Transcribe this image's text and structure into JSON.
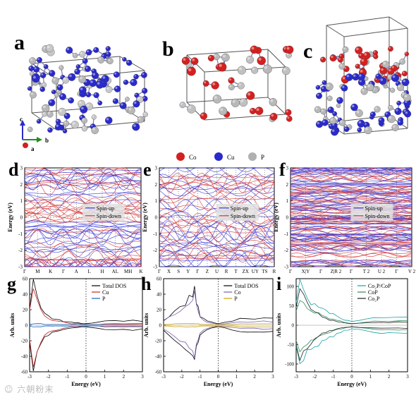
{
  "panel_labels": {
    "a": "a",
    "b": "b",
    "c": "c",
    "d": "d",
    "e": "e",
    "f": "f",
    "g": "g",
    "h": "h",
    "i": "i"
  },
  "atom_legend": [
    {
      "name": "Co",
      "color": "#d42020"
    },
    {
      "name": "Cu",
      "color": "#2a2acc"
    },
    {
      "name": "P",
      "color": "#b0b0b0"
    }
  ],
  "axes_triad": {
    "c": "c",
    "b": "b",
    "a": "a"
  },
  "band_panels": [
    {
      "id": "d",
      "ylabel": "Energy (eV)",
      "yticks": [
        "3",
        "2",
        "1",
        "0",
        "-1",
        "-2",
        "-3"
      ],
      "kpoints": [
        "Γ",
        "M",
        "K",
        "Γ",
        "A",
        "L",
        "H",
        "AL",
        "MH",
        "K"
      ],
      "legend": [
        "Spin-up",
        "Spin-down"
      ]
    },
    {
      "id": "e",
      "ylabel": "Energy (eV)",
      "yticks": [
        "3",
        "2",
        "1",
        "0",
        "-1",
        "-2",
        "-3"
      ],
      "kpoints": [
        "Γ",
        "X",
        "S",
        "Y",
        "Γ",
        "Z",
        "U",
        "R",
        "T",
        "ZX",
        "UY",
        "TS",
        "R"
      ],
      "legend": [
        "Spin-up",
        "Spin-down"
      ]
    },
    {
      "id": "f",
      "ylabel": "Energy (eV)",
      "yticks": [
        "3",
        "2",
        "1",
        "0",
        "-1",
        "-2",
        "-3"
      ],
      "kpoints": [
        "Γ",
        "X|Y",
        "Γ",
        "Z|R 2",
        "Γ",
        "T 2",
        "U 2",
        "Γ",
        "V 2"
      ],
      "legend": [
        "Spin-up",
        "Spin-down"
      ]
    }
  ],
  "chart_data": [
    {
      "panel": "g",
      "type": "line",
      "title": "",
      "xlabel": "Energy (eV)",
      "ylabel": "Arb. units",
      "xlim": [
        -3,
        3
      ],
      "ylim": [
        -60,
        60
      ],
      "xticks": [
        "-3",
        "-2",
        "-1",
        "0",
        "1",
        "2",
        "3"
      ],
      "yticks": [
        "60",
        "40",
        "20",
        "0",
        "-20",
        "-40",
        "-60"
      ],
      "series": [
        {
          "name": "Total DOS",
          "color": "#000000",
          "x": [
            -3,
            -2.8,
            -2.6,
            -2.4,
            -2.2,
            -2,
            -1.8,
            -1.6,
            -1.4,
            -1.2,
            -1,
            -0.8,
            -0.6,
            -0.4,
            -0.2,
            0,
            0.3,
            0.6,
            1,
            1.5,
            2,
            2.5,
            3
          ],
          "y": [
            20,
            55,
            38,
            25,
            16,
            12,
            9,
            8,
            7,
            5,
            4,
            4,
            3,
            3,
            2,
            2,
            3,
            4,
            5,
            6,
            5,
            6,
            5
          ]
        },
        {
          "name": "Cu",
          "color": "#c62828",
          "x": [
            -3,
            -2.8,
            -2.6,
            -2.4,
            -2.2,
            -2,
            -1.8,
            -1.6,
            -1.4,
            -1.2,
            -1,
            -0.8,
            -0.6,
            -0.4,
            -0.2,
            0,
            0.3,
            0.6,
            1,
            1.5,
            2,
            2.5,
            3
          ],
          "y": [
            18,
            50,
            34,
            22,
            13,
            9,
            7,
            6,
            5,
            4,
            3,
            2,
            2,
            2,
            1,
            1,
            1,
            1,
            1,
            1,
            1,
            1,
            1
          ]
        },
        {
          "name": "P",
          "color": "#1565c0",
          "x": [
            -3,
            -2.8,
            -2.6,
            -2.4,
            -2.2,
            -2,
            -1.8,
            -1.6,
            -1.4,
            -1.2,
            -1,
            -0.8,
            -0.6,
            -0.4,
            -0.2,
            0,
            0.3,
            0.6,
            1,
            1.5,
            2,
            2.5,
            3
          ],
          "y": [
            1,
            2,
            2,
            2,
            1,
            1,
            1,
            1,
            1,
            1,
            1,
            1,
            1,
            1,
            1,
            1,
            1,
            1,
            2,
            2,
            2,
            2,
            2
          ]
        }
      ]
    },
    {
      "panel": "h",
      "type": "line",
      "title": "",
      "xlabel": "Energy (eV)",
      "ylabel": "Arb. units",
      "xlim": [
        -3,
        3
      ],
      "ylim": [
        -60,
        60
      ],
      "xticks": [
        "-3",
        "-2",
        "-1",
        "0",
        "1",
        "2",
        "3"
      ],
      "yticks": [
        "60",
        "40",
        "20",
        "0",
        "-20",
        "-40",
        "-60"
      ],
      "series": [
        {
          "name": "Total DOS",
          "color": "#000000",
          "x": [
            -3,
            -2.7,
            -2.4,
            -2.1,
            -1.8,
            -1.6,
            -1.4,
            -1.3,
            -1.2,
            -1.1,
            -1,
            -0.8,
            -0.6,
            -0.4,
            -0.2,
            0,
            0.4,
            0.8,
            1.2,
            1.6,
            2,
            2.5,
            3
          ],
          "y": [
            6,
            12,
            18,
            24,
            28,
            35,
            40,
            48,
            30,
            22,
            12,
            8,
            6,
            4,
            3,
            2,
            4,
            6,
            8,
            9,
            8,
            10,
            9
          ]
        },
        {
          "name": "Co",
          "color": "#7b5fa8",
          "x": [
            -3,
            -2.7,
            -2.4,
            -2.1,
            -1.8,
            -1.6,
            -1.4,
            -1.3,
            -1.2,
            -1.1,
            -1,
            -0.8,
            -0.6,
            -0.4,
            -0.2,
            0,
            0.4,
            0.8,
            1.2,
            1.6,
            2,
            2.5,
            3
          ],
          "y": [
            5,
            10,
            15,
            20,
            24,
            30,
            36,
            46,
            27,
            19,
            10,
            6,
            4,
            3,
            2,
            1,
            2,
            3,
            4,
            4,
            4,
            5,
            4
          ]
        },
        {
          "name": "P",
          "color": "#c9a20a",
          "x": [
            -3,
            -2.7,
            -2.4,
            -2.1,
            -1.8,
            -1.6,
            -1.4,
            -1.3,
            -1.2,
            -1.1,
            -1,
            -0.8,
            -0.6,
            -0.4,
            -0.2,
            0,
            0.4,
            0.8,
            1.2,
            1.6,
            2,
            2.5,
            3
          ],
          "y": [
            1,
            1,
            2,
            2,
            2,
            2,
            2,
            2,
            2,
            2,
            1,
            1,
            1,
            1,
            1,
            1,
            1,
            1,
            2,
            2,
            2,
            2,
            2
          ]
        }
      ]
    },
    {
      "panel": "i",
      "type": "line",
      "title": "",
      "xlabel": "Energy (eV)",
      "ylabel": "Arb. units",
      "xlim": [
        -3,
        3
      ],
      "ylim": [
        -120,
        120
      ],
      "xticks": [
        "-3",
        "-2",
        "-1",
        "0",
        "1",
        "2",
        "3"
      ],
      "yticks": [
        "100",
        "50",
        "0",
        "-50",
        "-100"
      ],
      "series": [
        {
          "name": "Co₂P/CoP",
          "color": "#17a2a2",
          "x": [
            -3,
            -2.8,
            -2.6,
            -2.4,
            -2.2,
            -2,
            -1.8,
            -1.6,
            -1.4,
            -1.2,
            -1,
            -0.8,
            -0.6,
            -0.4,
            -0.2,
            0,
            0.4,
            0.8,
            1.2,
            1.6,
            2,
            2.5,
            3
          ],
          "y": [
            60,
            110,
            95,
            70,
            60,
            55,
            48,
            40,
            36,
            30,
            28,
            22,
            18,
            14,
            12,
            10,
            12,
            15,
            18,
            20,
            18,
            22,
            20
          ]
        },
        {
          "name": "CoP",
          "color": "#2e8b57",
          "x": [
            -3,
            -2.8,
            -2.6,
            -2.4,
            -2.2,
            -2,
            -1.8,
            -1.6,
            -1.4,
            -1.2,
            -1,
            -0.8,
            -0.6,
            -0.4,
            -0.2,
            0,
            0.4,
            0.8,
            1.2,
            1.6,
            2,
            2.5,
            3
          ],
          "y": [
            40,
            70,
            60,
            48,
            40,
            34,
            30,
            25,
            22,
            18,
            15,
            12,
            10,
            8,
            6,
            5,
            6,
            8,
            10,
            11,
            10,
            12,
            11
          ]
        },
        {
          "name": "Co₂P",
          "color": "#222222",
          "x": [
            -3,
            -2.8,
            -2.6,
            -2.4,
            -2.2,
            -2,
            -1.8,
            -1.6,
            -1.4,
            -1.2,
            -1,
            -0.8,
            -0.6,
            -0.4,
            -0.2,
            0,
            0.4,
            0.8,
            1.2,
            1.6,
            2,
            2.5,
            3
          ],
          "y": [
            50,
            88,
            74,
            56,
            44,
            36,
            28,
            22,
            18,
            14,
            12,
            9,
            7,
            6,
            5,
            4,
            5,
            6,
            7,
            8,
            7,
            8,
            8
          ]
        }
      ]
    }
  ],
  "watermark": "☺ 六朝粉末"
}
